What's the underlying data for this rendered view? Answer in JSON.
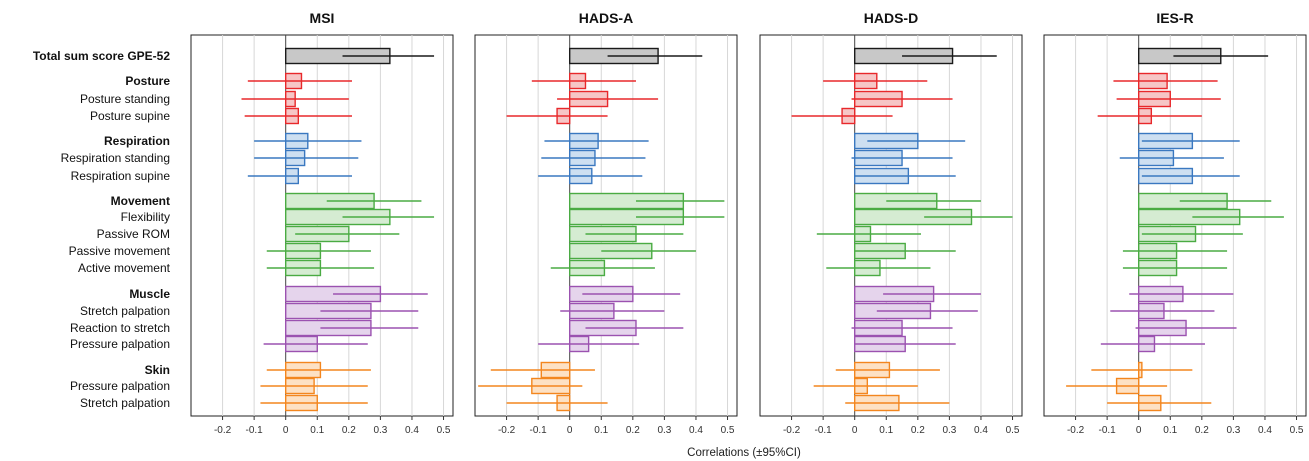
{
  "chart_data": {
    "type": "bar",
    "orientation": "horizontal",
    "xlabel": "Correlations (±95%CI)",
    "xlim": [
      -0.3,
      0.53
    ],
    "xticks": [
      -0.2,
      -0.1,
      0,
      0.1,
      0.2,
      0.3,
      0.4,
      0.5
    ],
    "xtick_labels": [
      "-0.2",
      "-0.1",
      "0",
      "0.1",
      "0.2",
      "0.3",
      "0.4",
      "0.5"
    ],
    "grid": "vertical",
    "bars_show": "correlation with 95% confidence interval line",
    "rows": [
      {
        "label": "Total sum score GPE-52",
        "bold": true,
        "group": "total"
      },
      {
        "label": "Posture",
        "bold": true,
        "group": "posture"
      },
      {
        "label": "Posture standing",
        "bold": false,
        "group": "posture"
      },
      {
        "label": "Posture supine",
        "bold": false,
        "group": "posture"
      },
      {
        "label": "Respiration",
        "bold": true,
        "group": "respiration"
      },
      {
        "label": "Respiration standing",
        "bold": false,
        "group": "respiration"
      },
      {
        "label": "Respiration supine",
        "bold": false,
        "group": "respiration"
      },
      {
        "label": "Movement",
        "bold": true,
        "group": "movement"
      },
      {
        "label": "Flexibility",
        "bold": false,
        "group": "movement"
      },
      {
        "label": "Passive ROM",
        "bold": false,
        "group": "movement"
      },
      {
        "label": "Passive movement",
        "bold": false,
        "group": "movement"
      },
      {
        "label": "Active movement",
        "bold": false,
        "group": "movement"
      },
      {
        "label": "Muscle",
        "bold": true,
        "group": "muscle"
      },
      {
        "label": "Stretch palpation",
        "bold": false,
        "group": "muscle"
      },
      {
        "label": "Reaction to stretch",
        "bold": false,
        "group": "muscle"
      },
      {
        "label": "Pressure palpation",
        "bold": false,
        "group": "muscle"
      },
      {
        "label": "Skin",
        "bold": true,
        "group": "skin"
      },
      {
        "label": "Pressure palpation",
        "bold": false,
        "group": "skin"
      },
      {
        "label": "Stretch palpation",
        "bold": false,
        "group": "skin"
      }
    ],
    "group_colors": {
      "total": {
        "stroke": "#1a1a1a",
        "fill": "#c8c8c8"
      },
      "posture": {
        "stroke": "#e8282b",
        "fill": "#f6c6c6"
      },
      "respiration": {
        "stroke": "#3a78c0",
        "fill": "#cddff1"
      },
      "movement": {
        "stroke": "#4aab43",
        "fill": "#d5ecd2"
      },
      "muscle": {
        "stroke": "#9b52b0",
        "fill": "#e5d4ec"
      },
      "skin": {
        "stroke": "#f3861e",
        "fill": "#fde1c4"
      }
    },
    "panels": [
      {
        "title": "MSI",
        "values": [
          0.33,
          0.05,
          0.03,
          0.04,
          0.07,
          0.06,
          0.04,
          0.28,
          0.33,
          0.2,
          0.11,
          0.11,
          0.3,
          0.27,
          0.27,
          0.1,
          0.11,
          0.09,
          0.1
        ],
        "ci_low": [
          0.18,
          -0.12,
          -0.14,
          -0.13,
          -0.1,
          -0.1,
          -0.12,
          0.13,
          0.18,
          0.03,
          -0.06,
          -0.06,
          0.15,
          0.11,
          0.11,
          -0.07,
          -0.06,
          -0.08,
          -0.08
        ],
        "ci_high": [
          0.47,
          0.21,
          0.2,
          0.21,
          0.24,
          0.23,
          0.21,
          0.43,
          0.47,
          0.36,
          0.27,
          0.28,
          0.45,
          0.42,
          0.42,
          0.26,
          0.27,
          0.26,
          0.26
        ]
      },
      {
        "title": "HADS-A",
        "values": [
          0.28,
          0.05,
          0.12,
          -0.04,
          0.09,
          0.08,
          0.07,
          0.36,
          0.36,
          0.21,
          0.26,
          0.11,
          0.2,
          0.14,
          0.21,
          0.06,
          -0.09,
          -0.12,
          -0.04
        ],
        "ci_low": [
          0.12,
          -0.12,
          -0.04,
          -0.2,
          -0.08,
          -0.09,
          -0.1,
          0.21,
          0.21,
          0.05,
          0.1,
          -0.06,
          0.04,
          -0.03,
          0.05,
          -0.1,
          -0.25,
          -0.29,
          -0.2
        ],
        "ci_high": [
          0.42,
          0.21,
          0.28,
          0.12,
          0.25,
          0.24,
          0.23,
          0.49,
          0.49,
          0.36,
          0.4,
          0.27,
          0.35,
          0.3,
          0.36,
          0.22,
          0.08,
          0.04,
          0.12
        ]
      },
      {
        "title": "HADS-D",
        "values": [
          0.31,
          0.07,
          0.15,
          -0.04,
          0.2,
          0.15,
          0.17,
          0.26,
          0.37,
          0.05,
          0.16,
          0.08,
          0.25,
          0.24,
          0.15,
          0.16,
          0.11,
          0.04,
          0.14
        ],
        "ci_low": [
          0.15,
          -0.1,
          -0.01,
          -0.2,
          0.04,
          -0.01,
          0.0,
          0.1,
          0.22,
          -0.12,
          0.0,
          -0.09,
          0.09,
          0.07,
          -0.01,
          0.0,
          -0.06,
          -0.13,
          -0.03
        ],
        "ci_high": [
          0.45,
          0.23,
          0.31,
          0.12,
          0.35,
          0.31,
          0.32,
          0.4,
          0.5,
          0.21,
          0.32,
          0.24,
          0.4,
          0.39,
          0.31,
          0.32,
          0.27,
          0.2,
          0.3
        ]
      },
      {
        "title": "IES-R",
        "values": [
          0.26,
          0.09,
          0.1,
          0.04,
          0.17,
          0.11,
          0.17,
          0.28,
          0.32,
          0.18,
          0.12,
          0.12,
          0.14,
          0.08,
          0.15,
          0.05,
          0.01,
          -0.07,
          0.07
        ],
        "ci_low": [
          0.11,
          -0.08,
          -0.07,
          -0.13,
          0.01,
          -0.06,
          0.01,
          0.13,
          0.17,
          0.01,
          -0.05,
          -0.05,
          -0.03,
          -0.09,
          -0.01,
          -0.12,
          -0.15,
          -0.23,
          -0.1
        ],
        "ci_high": [
          0.41,
          0.25,
          0.26,
          0.2,
          0.32,
          0.27,
          0.32,
          0.42,
          0.46,
          0.33,
          0.28,
          0.28,
          0.3,
          0.24,
          0.31,
          0.21,
          0.17,
          0.09,
          0.23
        ]
      }
    ]
  }
}
